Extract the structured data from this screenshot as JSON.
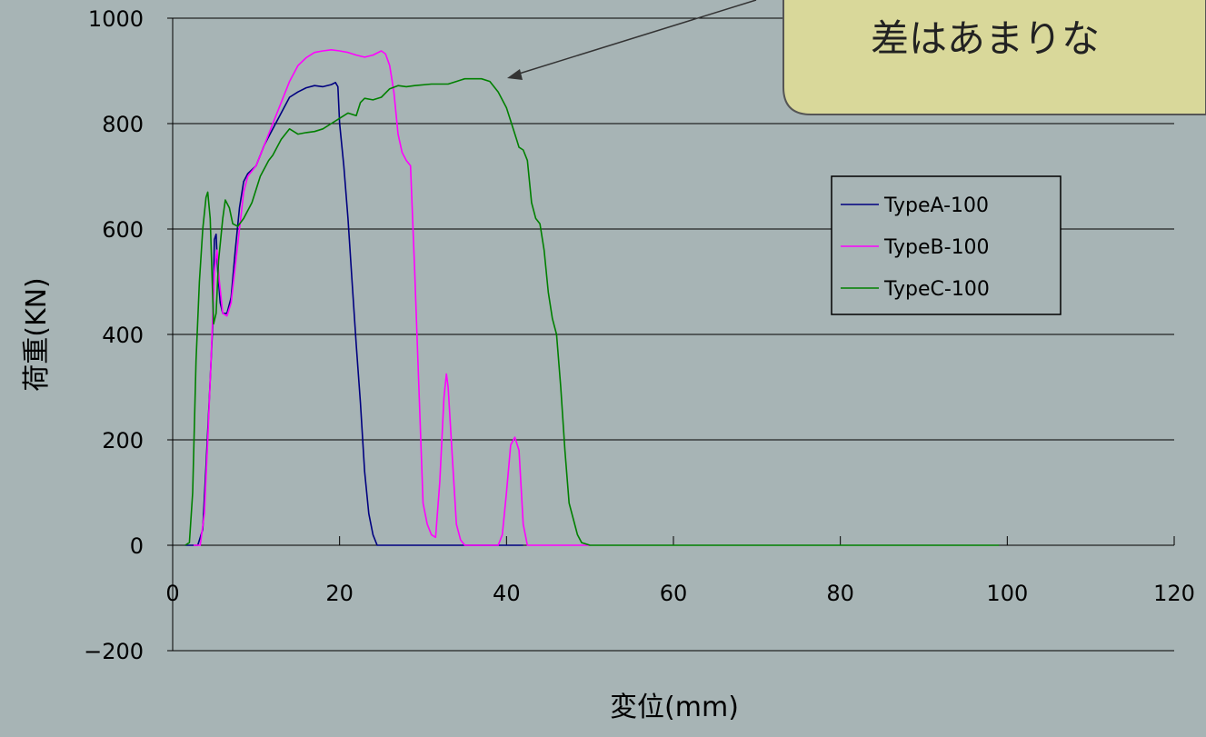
{
  "chart_data": {
    "type": "line",
    "xlabel": "変位(mm)",
    "ylabel": "荷重(KN)",
    "xlim": [
      0,
      120
    ],
    "ylim": [
      -200,
      1000
    ],
    "x_ticks": [
      0,
      20,
      40,
      60,
      80,
      100,
      120
    ],
    "y_ticks": [
      -200,
      0,
      200,
      400,
      600,
      800,
      1000
    ],
    "grid": "horizontal",
    "legend_position": "right",
    "annotation": "差はあまりな",
    "series": [
      {
        "name": "TypeA-100",
        "color": "#000080",
        "points": [
          [
            1.5,
            0
          ],
          [
            3,
            0
          ],
          [
            3.6,
            30
          ],
          [
            4,
            150
          ],
          [
            4.4,
            280
          ],
          [
            4.8,
            420
          ],
          [
            5,
            580
          ],
          [
            5.2,
            590
          ],
          [
            5.4,
            520
          ],
          [
            5.7,
            460
          ],
          [
            6,
            440
          ],
          [
            6.5,
            440
          ],
          [
            7,
            470
          ],
          [
            7.5,
            560
          ],
          [
            8,
            640
          ],
          [
            8.5,
            690
          ],
          [
            9,
            705
          ],
          [
            10,
            720
          ],
          [
            11,
            760
          ],
          [
            12,
            790
          ],
          [
            13,
            820
          ],
          [
            14,
            850
          ],
          [
            15,
            860
          ],
          [
            16,
            868
          ],
          [
            17,
            872
          ],
          [
            18,
            870
          ],
          [
            19,
            874
          ],
          [
            19.5,
            878
          ],
          [
            19.8,
            870
          ],
          [
            20,
            800
          ],
          [
            20.5,
            720
          ],
          [
            21,
            620
          ],
          [
            21.5,
            500
          ],
          [
            22,
            380
          ],
          [
            22.5,
            270
          ],
          [
            23,
            140
          ],
          [
            23.5,
            60
          ],
          [
            24,
            20
          ],
          [
            24.5,
            0
          ],
          [
            26,
            0
          ],
          [
            30,
            0
          ],
          [
            34,
            0
          ],
          [
            38,
            0
          ],
          [
            42,
            0
          ]
        ]
      },
      {
        "name": "TypeB-100",
        "color": "#ff00ff",
        "points": [
          [
            2.5,
            0
          ],
          [
            3.3,
            0
          ],
          [
            3.8,
            60
          ],
          [
            4.2,
            200
          ],
          [
            4.6,
            350
          ],
          [
            5,
            520
          ],
          [
            5.3,
            560
          ],
          [
            5.6,
            500
          ],
          [
            6,
            440
          ],
          [
            6.5,
            435
          ],
          [
            7,
            460
          ],
          [
            7.5,
            530
          ],
          [
            8,
            600
          ],
          [
            8.5,
            670
          ],
          [
            9,
            700
          ],
          [
            10,
            720
          ],
          [
            11,
            760
          ],
          [
            12,
            800
          ],
          [
            13,
            840
          ],
          [
            14,
            880
          ],
          [
            15,
            910
          ],
          [
            16,
            925
          ],
          [
            17,
            935
          ],
          [
            18,
            938
          ],
          [
            19,
            940
          ],
          [
            20,
            938
          ],
          [
            21,
            935
          ],
          [
            22,
            930
          ],
          [
            23,
            926
          ],
          [
            24,
            930
          ],
          [
            25,
            938
          ],
          [
            25.5,
            932
          ],
          [
            26,
            910
          ],
          [
            26.5,
            860
          ],
          [
            27,
            780
          ],
          [
            27.5,
            745
          ],
          [
            28,
            730
          ],
          [
            28.5,
            720
          ],
          [
            29,
            520
          ],
          [
            29.5,
            300
          ],
          [
            30,
            80
          ],
          [
            30.5,
            40
          ],
          [
            31,
            20
          ],
          [
            31.5,
            15
          ],
          [
            32,
            120
          ],
          [
            32.5,
            280
          ],
          [
            32.8,
            325
          ],
          [
            33,
            300
          ],
          [
            33.5,
            170
          ],
          [
            34,
            40
          ],
          [
            34.5,
            10
          ],
          [
            35,
            0
          ],
          [
            36,
            0
          ],
          [
            38,
            0
          ],
          [
            39,
            0
          ],
          [
            39.5,
            20
          ],
          [
            40,
            100
          ],
          [
            40.5,
            190
          ],
          [
            41,
            205
          ],
          [
            41.5,
            180
          ],
          [
            42,
            40
          ],
          [
            42.5,
            0
          ],
          [
            45,
            0
          ],
          [
            48,
            0
          ],
          [
            50,
            0
          ]
        ]
      },
      {
        "name": "TypeC-100",
        "color": "#008000",
        "points": [
          [
            1.5,
            0
          ],
          [
            2,
            5
          ],
          [
            2.4,
            100
          ],
          [
            2.8,
            350
          ],
          [
            3.2,
            500
          ],
          [
            3.6,
            600
          ],
          [
            4,
            660
          ],
          [
            4.2,
            670
          ],
          [
            4.5,
            620
          ],
          [
            4.9,
            420
          ],
          [
            5.2,
            440
          ],
          [
            5.5,
            540
          ],
          [
            6,
            620
          ],
          [
            6.3,
            655
          ],
          [
            6.8,
            640
          ],
          [
            7.2,
            610
          ],
          [
            7.8,
            605
          ],
          [
            8.5,
            620
          ],
          [
            9.5,
            650
          ],
          [
            10.5,
            700
          ],
          [
            11.5,
            730
          ],
          [
            12,
            740
          ],
          [
            13,
            770
          ],
          [
            14,
            790
          ],
          [
            15,
            780
          ],
          [
            16,
            783
          ],
          [
            17,
            785
          ],
          [
            18,
            790
          ],
          [
            19,
            800
          ],
          [
            20,
            810
          ],
          [
            21,
            820
          ],
          [
            22,
            815
          ],
          [
            22.5,
            840
          ],
          [
            23,
            848
          ],
          [
            24,
            845
          ],
          [
            25,
            850
          ],
          [
            26,
            866
          ],
          [
            27,
            872
          ],
          [
            28,
            870
          ],
          [
            29,
            872
          ],
          [
            31,
            875
          ],
          [
            33,
            875
          ],
          [
            34,
            880
          ],
          [
            35,
            885
          ],
          [
            37,
            885
          ],
          [
            38,
            880
          ],
          [
            39,
            860
          ],
          [
            40,
            830
          ],
          [
            40.8,
            790
          ],
          [
            41.2,
            770
          ],
          [
            41.5,
            755
          ],
          [
            42,
            750
          ],
          [
            42.5,
            730
          ],
          [
            43,
            650
          ],
          [
            43.5,
            620
          ],
          [
            44,
            610
          ],
          [
            44.5,
            560
          ],
          [
            45,
            480
          ],
          [
            45.5,
            430
          ],
          [
            46,
            400
          ],
          [
            46.5,
            300
          ],
          [
            47,
            180
          ],
          [
            47.5,
            80
          ],
          [
            48,
            50
          ],
          [
            48.5,
            20
          ],
          [
            49,
            5
          ],
          [
            50,
            0
          ],
          [
            52,
            0
          ],
          [
            60,
            0
          ],
          [
            70,
            0
          ],
          [
            80,
            0
          ],
          [
            90,
            0
          ],
          [
            99,
            0
          ]
        ]
      }
    ]
  }
}
